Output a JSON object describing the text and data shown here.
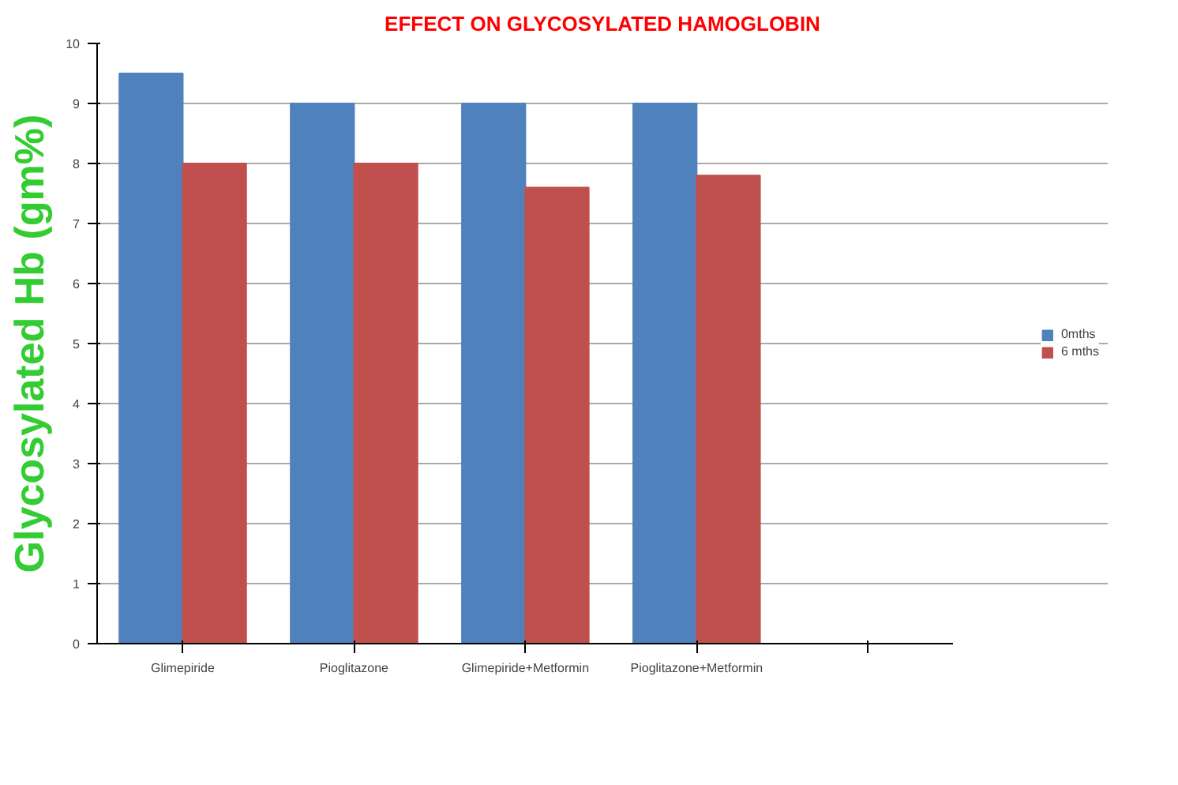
{
  "chart_data": {
    "type": "bar",
    "title": "EFFECT ON GLYCOSYLATED HAMOGLOBIN",
    "ylabel": "Glycosylated Hb (gm%)",
    "categories": [
      "Glimepiride",
      "Pioglitazone",
      "Glimepiride+Metformin",
      "Pioglitazone+Metformin",
      null
    ],
    "series": [
      {
        "name": "0mths",
        "color": "#4f81bd",
        "values": [
          9.5,
          9,
          9,
          9,
          null
        ]
      },
      {
        "name": "6 mths",
        "color": "#c0504d",
        "values": [
          8,
          8,
          7.6,
          7.8,
          null
        ]
      }
    ],
    "ylim": [
      0,
      10
    ],
    "yticks": [
      0,
      1,
      2,
      3,
      4,
      5,
      6,
      7,
      8,
      9,
      10
    ],
    "grid": "y",
    "legend": "right"
  }
}
